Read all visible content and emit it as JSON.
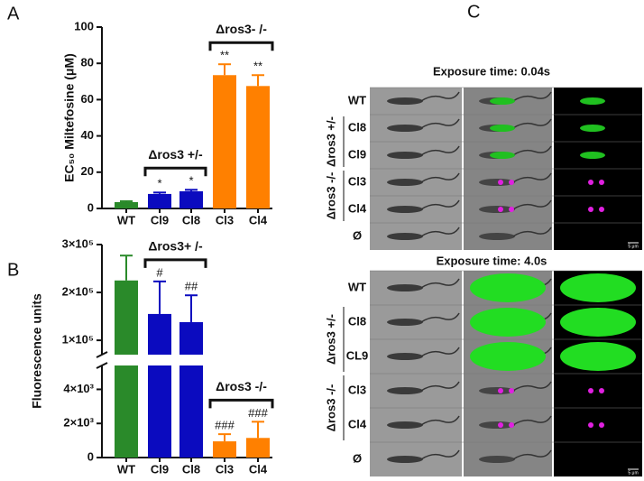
{
  "chart_data": [
    {
      "type": "bar",
      "panel": "A",
      "ylabel": "EC₅₀ Miltefosine (μM)",
      "categories": [
        "WT",
        "Cl9",
        "Cl8",
        "Cl3",
        "Cl4"
      ],
      "values": [
        3.5,
        8,
        9.5,
        73.5,
        67.5
      ],
      "errors": [
        0.5,
        0.8,
        0.8,
        6,
        6
      ],
      "colors": [
        "#2a8a2a",
        "#0b0bbf",
        "#0b0bbf",
        "#ff8000",
        "#ff8000"
      ],
      "ylim": [
        0,
        100
      ],
      "yticks": [
        0,
        20,
        40,
        60,
        80,
        100
      ],
      "bar_labels": [
        null,
        "*",
        "*",
        "**",
        "**"
      ],
      "brackets": [
        {
          "label": "Δros3 +/-",
          "span": [
            "Cl9",
            "Cl8"
          ]
        },
        {
          "label": "Δros3- /-",
          "span": [
            "Cl3",
            "Cl4"
          ]
        }
      ]
    },
    {
      "type": "bar",
      "panel": "B",
      "ylabel": "Fluorescence units",
      "categories": [
        "WT",
        "Cl9",
        "Cl8",
        "Cl3",
        "Cl4"
      ],
      "values": [
        225000,
        155000,
        138000,
        950,
        1150
      ],
      "errors": [
        52000,
        68000,
        56000,
        420,
        950
      ],
      "colors": [
        "#2a8a2a",
        "#0b0bbf",
        "#0b0bbf",
        "#ff8000",
        "#ff8000"
      ],
      "ylim": [
        0,
        300000
      ],
      "y_break": [
        5400,
        70000
      ],
      "yticks": [
        0,
        {
          "value": 2000,
          "label": "2×10³"
        },
        {
          "value": 4000,
          "label": "4×10³"
        },
        {
          "value": 100000,
          "label": "1×10⁵"
        },
        {
          "value": 200000,
          "label": "2×10⁵"
        },
        {
          "value": 300000,
          "label": "3×10⁵"
        }
      ],
      "bar_labels": [
        null,
        "#",
        "##",
        "###",
        "###"
      ],
      "brackets": [
        {
          "label": "Δros3+ /-",
          "span": [
            "Cl9",
            "Cl8"
          ]
        },
        {
          "label": "Δros3 -/-",
          "span": [
            "Cl3",
            "Cl4"
          ]
        }
      ]
    }
  ],
  "panel_c": {
    "label": "C",
    "blocks": [
      {
        "title": "Exposure time: 0.04s",
        "rows": [
          "WT",
          "Cl8",
          "Cl9",
          "Cl3",
          "Cl4",
          "Ø"
        ],
        "groups": [
          "Δros3 +/-",
          "Δros3 -/-"
        ],
        "scale_bar": "5 μm"
      },
      {
        "title": "Exposure time: 4.0s",
        "rows": [
          "WT",
          "Cl8",
          "CL9",
          "Cl3",
          "Cl4",
          "Ø"
        ],
        "groups": [
          "Δros3 +/-",
          "Δros3 -/-"
        ],
        "scale_bar": "5 μm"
      }
    ]
  }
}
